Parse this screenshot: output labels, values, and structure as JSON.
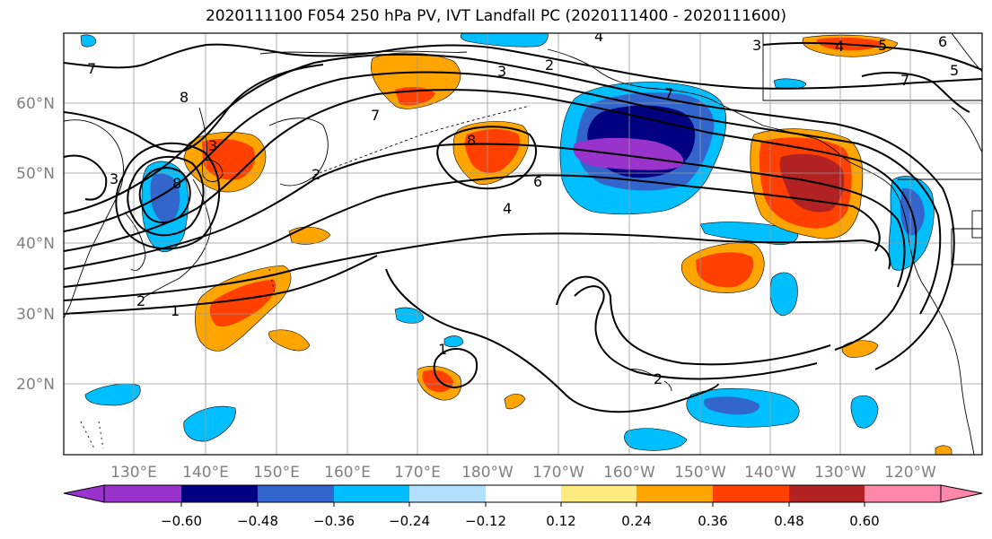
{
  "title": "2020111100 F054 250 hPa PV, IVT Landfall PC (2020111400 - 2020111600)",
  "lat_labels": [
    "60°N",
    "50°N",
    "40°N",
    "30°N",
    "20°N"
  ],
  "lon_labels": [
    "130°E",
    "140°E",
    "150°E",
    "160°E",
    "170°E",
    "180°W",
    "170°W",
    "160°W",
    "150°W",
    "140°W",
    "130°W",
    "120°W"
  ],
  "colorbar": {
    "colors": [
      "#9933cc",
      "#000080",
      "#3366cc",
      "#00bfff",
      "#b3e0ff",
      "#ffffff",
      "#ffeb80",
      "#ffa500",
      "#ff4000",
      "#b22222",
      "#ff88aa"
    ],
    "tick_labels": [
      "−0.60",
      "−0.48",
      "−0.36",
      "−0.24",
      "−0.12",
      "0.12",
      "0.24",
      "0.36",
      "0.48",
      "0.60"
    ]
  },
  "contour_labels": [
    "7",
    "8",
    "4",
    "2",
    "3",
    "3",
    "4",
    "5",
    "6",
    "5",
    "7",
    "7",
    "8",
    "8",
    "2",
    "3",
    "6",
    "4",
    "7",
    "2",
    "1",
    "1",
    "2",
    "3"
  ]
}
